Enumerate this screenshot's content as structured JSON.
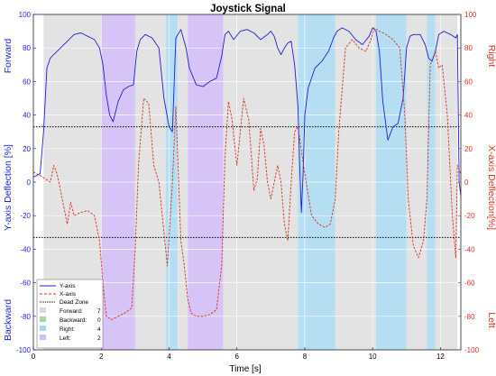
{
  "chart_data": {
    "type": "line",
    "title": "Joystick Signal",
    "xlabel": "Time [s]",
    "ylabel_left": "Y-axis Deflection [%]",
    "ylabel_right": "X-axis Deflection[%]",
    "left_top_label": "Forward",
    "left_bottom_label": "Backward",
    "right_top_label": "Right",
    "right_bottom_label": "Left",
    "xlim": [
      0,
      12.6
    ],
    "ylim_left": [
      -100,
      100
    ],
    "ylim_right": [
      -100,
      100
    ],
    "x_ticks": [
      0,
      2,
      4,
      6,
      8,
      10,
      12
    ],
    "y_ticks_left": [
      -100,
      -80,
      -60,
      -40,
      -20,
      0,
      20,
      40,
      60,
      80,
      100
    ],
    "y_ticks_right": [
      -100,
      -80,
      -60,
      -40,
      -20,
      0,
      20,
      40,
      60,
      80,
      100
    ],
    "dead_zone": [
      -33,
      33
    ],
    "grid": true,
    "legend_position": "bottom-left",
    "regions": [
      {
        "start": 0.3,
        "end": 2.0,
        "class": "Forward"
      },
      {
        "start": 2.0,
        "end": 3.0,
        "class": "Left"
      },
      {
        "start": 3.0,
        "end": 3.9,
        "class": "Forward"
      },
      {
        "start": 3.9,
        "end": 4.25,
        "class": "Right"
      },
      {
        "start": 4.25,
        "end": 4.55,
        "class": "Forward"
      },
      {
        "start": 4.55,
        "end": 5.6,
        "class": "Left"
      },
      {
        "start": 5.6,
        "end": 7.8,
        "class": "Forward"
      },
      {
        "start": 7.8,
        "end": 8.9,
        "class": "Right"
      },
      {
        "start": 8.9,
        "end": 10.1,
        "class": "Forward"
      },
      {
        "start": 10.1,
        "end": 11.0,
        "class": "Right"
      },
      {
        "start": 11.0,
        "end": 11.6,
        "class": "Forward"
      },
      {
        "start": 11.6,
        "end": 11.85,
        "class": "Right"
      },
      {
        "start": 11.85,
        "end": 12.5,
        "class": "Forward"
      }
    ],
    "series": [
      {
        "name": "Y-axis",
        "axis": "left",
        "color": "#1f1fd6",
        "style": "solid",
        "x": [
          0,
          0.2,
          0.3,
          0.4,
          0.5,
          0.6,
          0.8,
          1.0,
          1.2,
          1.4,
          1.6,
          1.8,
          1.95,
          2.05,
          2.15,
          2.25,
          2.35,
          2.5,
          2.65,
          2.8,
          2.95,
          3.05,
          3.15,
          3.3,
          3.5,
          3.7,
          3.85,
          4.0,
          4.1,
          4.2,
          4.35,
          4.5,
          4.6,
          4.8,
          5.0,
          5.2,
          5.4,
          5.55,
          5.65,
          5.75,
          5.9,
          6.1,
          6.3,
          6.5,
          6.7,
          6.9,
          7.0,
          7.1,
          7.2,
          7.3,
          7.4,
          7.5,
          7.6,
          7.7,
          7.8,
          7.85,
          7.9,
          7.95,
          8.0,
          8.1,
          8.3,
          8.5,
          8.7,
          8.85,
          8.95,
          9.1,
          9.3,
          9.5,
          9.7,
          9.9,
          10.0,
          10.1,
          10.2,
          10.3,
          10.45,
          10.6,
          10.75,
          10.9,
          11.0,
          11.1,
          11.2,
          11.4,
          11.55,
          11.65,
          11.75,
          11.85,
          11.95,
          12.1,
          12.3,
          12.45,
          12.5,
          12.55,
          12.6
        ],
        "y": [
          3,
          5,
          30,
          68,
          74,
          76,
          80,
          84,
          88,
          89,
          87,
          85,
          80,
          70,
          52,
          40,
          36,
          48,
          55,
          57,
          58,
          78,
          85,
          88,
          86,
          80,
          50,
          33,
          30,
          86,
          91,
          80,
          68,
          58,
          57,
          60,
          62,
          75,
          88,
          90,
          85,
          90,
          91,
          89,
          85,
          88,
          90,
          87,
          80,
          76,
          80,
          83,
          84,
          70,
          45,
          10,
          -18,
          5,
          40,
          56,
          68,
          72,
          78,
          86,
          90,
          92,
          90,
          85,
          82,
          87,
          92,
          90,
          78,
          48,
          25,
          33,
          35,
          50,
          80,
          87,
          88,
          88,
          82,
          74,
          72,
          78,
          88,
          90,
          88,
          86,
          88,
          0,
          -8
        ]
      },
      {
        "name": "X-axis",
        "axis": "right",
        "color": "#d7301f",
        "style": "dashed",
        "x": [
          0,
          0.2,
          0.35,
          0.5,
          0.6,
          0.7,
          0.8,
          0.9,
          1.0,
          1.1,
          1.2,
          1.4,
          1.6,
          1.8,
          1.95,
          2.05,
          2.15,
          2.3,
          2.5,
          2.7,
          2.9,
          3.0,
          3.1,
          3.25,
          3.4,
          3.55,
          3.7,
          3.85,
          3.95,
          4.1,
          4.2,
          4.35,
          4.45,
          4.55,
          4.65,
          4.8,
          5.0,
          5.2,
          5.4,
          5.55,
          5.65,
          5.75,
          5.85,
          6.0,
          6.2,
          6.35,
          6.5,
          6.6,
          6.7,
          6.8,
          6.9,
          7.0,
          7.1,
          7.2,
          7.3,
          7.4,
          7.5,
          7.6,
          7.7,
          7.8,
          8.0,
          8.2,
          8.4,
          8.6,
          8.75,
          8.9,
          9.0,
          9.2,
          9.4,
          9.6,
          9.8,
          9.95,
          10.05,
          10.2,
          10.4,
          10.6,
          10.8,
          10.95,
          11.05,
          11.2,
          11.35,
          11.5,
          11.6,
          11.7,
          11.85,
          11.95,
          12.05,
          12.2,
          12.35,
          12.45,
          12.5,
          12.6
        ],
        "y": [
          6,
          4,
          2,
          0,
          10,
          5,
          -5,
          -15,
          -25,
          -12,
          -20,
          -18,
          -17,
          -20,
          -35,
          -60,
          -80,
          -82,
          -80,
          -78,
          -75,
          -40,
          10,
          50,
          47,
          10,
          0,
          -30,
          -50,
          0,
          45,
          -35,
          -50,
          -70,
          -78,
          -80,
          -80,
          -79,
          -76,
          -50,
          15,
          48,
          38,
          10,
          50,
          37,
          -5,
          2,
          32,
          22,
          0,
          -10,
          0,
          10,
          0,
          -25,
          -35,
          0,
          30,
          33,
          5,
          -20,
          -25,
          -27,
          -25,
          -10,
          30,
          80,
          85,
          80,
          78,
          85,
          92,
          90,
          88,
          85,
          80,
          40,
          -10,
          -38,
          -45,
          -35,
          -10,
          70,
          78,
          68,
          70,
          40,
          -20,
          -45,
          10,
          5
        ]
      }
    ],
    "legend": {
      "entries": [
        "Y-axis",
        "X-axis",
        "Dead Zone"
      ],
      "counts": [
        {
          "label": "Forward:",
          "value": "7",
          "color": "#d9d9d9"
        },
        {
          "label": "Backward:",
          "value": "0",
          "color": "#a6dba0"
        },
        {
          "label": "Right:",
          "value": "4",
          "color": "#a8d8f0"
        },
        {
          "label": "Left:",
          "value": "2",
          "color": "#d3bdf7"
        }
      ]
    },
    "region_colors": {
      "Forward": "#e3e3e3",
      "Backward": "#b9e3b4",
      "Right": "#b5def2",
      "Left": "#d7c4f7"
    },
    "colors": {
      "left_axis": "#1f1fd6",
      "right_axis": "#d7301f",
      "dead_zone": "#000000"
    }
  }
}
